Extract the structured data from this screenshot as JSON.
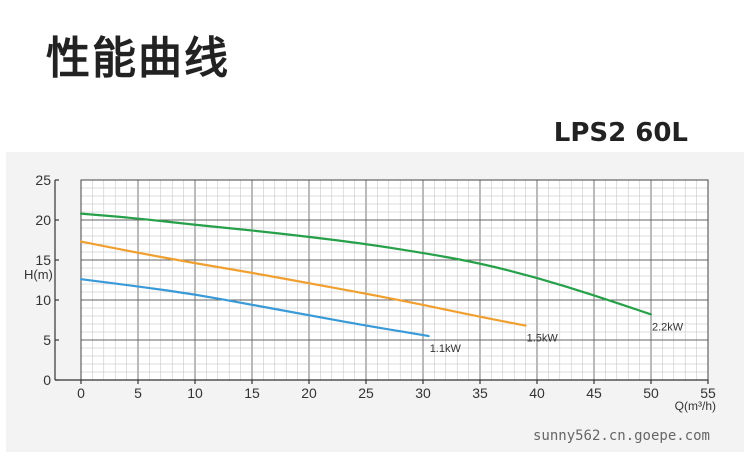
{
  "page": {
    "title": "性能曲线",
    "model": "LPS2 60L",
    "watermark": "sunny562.cn.goepe.com"
  },
  "chart_data": {
    "type": "line",
    "title": "",
    "xlabel": "Q(m³/h)",
    "ylabel": "H(m)",
    "xlim": [
      0,
      55
    ],
    "ylim": [
      0,
      25
    ],
    "xticks": [
      0,
      5,
      10,
      15,
      20,
      25,
      30,
      35,
      40,
      45,
      50,
      55
    ],
    "yticks": [
      0,
      5,
      10,
      15,
      20,
      25
    ],
    "grid": true,
    "series": [
      {
        "name": "2.2kW",
        "color": "#27a04a",
        "x": [
          0,
          5,
          10,
          15,
          20,
          25,
          30,
          35,
          40,
          45,
          50
        ],
        "y": [
          20.8,
          20.2,
          19.4,
          18.7,
          17.9,
          17.0,
          15.9,
          14.6,
          12.8,
          10.6,
          8.2
        ]
      },
      {
        "name": "1.5kW",
        "color": "#f0a030",
        "x": [
          0,
          5,
          10,
          15,
          20,
          25,
          30,
          35,
          39
        ],
        "y": [
          17.3,
          15.9,
          14.6,
          13.4,
          12.1,
          10.8,
          9.4,
          7.9,
          6.8
        ]
      },
      {
        "name": "1.1kW",
        "color": "#3a9ad8",
        "x": [
          0,
          5,
          10,
          15,
          20,
          25,
          30.5
        ],
        "y": [
          12.6,
          11.7,
          10.7,
          9.4,
          8.1,
          6.8,
          5.5
        ]
      }
    ]
  }
}
